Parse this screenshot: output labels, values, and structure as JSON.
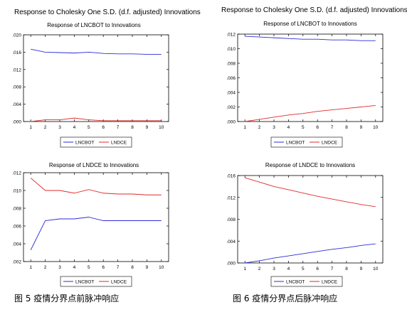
{
  "captions": {
    "left": "图 5   疫情分界点前脉冲响应",
    "right": "图 6   疫情分界点后脉冲响应"
  },
  "figures": {
    "left_title": "Response to Cholesky One S.D. (d.f. adjusted) Innovations",
    "right_title": "Response to Cholesky One S.D. (d.f. adjusted) Innovations"
  },
  "colors": {
    "LNCBOT": "#2b2bd9",
    "LNDCE": "#e02a2a"
  },
  "chart_data": [
    {
      "type": "line",
      "title": "Response of LNCBOT to Innovations",
      "x": [
        1,
        2,
        3,
        4,
        5,
        6,
        7,
        8,
        9,
        10
      ],
      "ylim": [
        0,
        0.02
      ],
      "yticks": [
        ".020",
        ".016",
        ".012",
        ".008",
        ".004",
        ".000"
      ],
      "grid": false,
      "legend": "bottom",
      "series": [
        {
          "name": "LNCBOT",
          "values": [
            0.0167,
            0.016,
            0.0159,
            0.0158,
            0.016,
            0.0157,
            0.0156,
            0.0156,
            0.0155,
            0.0155
          ]
        },
        {
          "name": "LNDCE",
          "values": [
            0.0,
            0.0004,
            0.0004,
            0.0008,
            0.0004,
            0.0002,
            0.0002,
            0.0002,
            0.0002,
            0.0002
          ]
        }
      ]
    },
    {
      "type": "line",
      "title": "Response of LNCBOT to Innovations",
      "x": [
        1,
        2,
        3,
        4,
        5,
        6,
        7,
        8,
        9,
        10
      ],
      "ylim": [
        0,
        0.012
      ],
      "yticks": [
        ".012",
        ".010",
        ".008",
        ".006",
        ".004",
        ".002",
        ".000"
      ],
      "grid": false,
      "legend": "bottom",
      "series": [
        {
          "name": "LNCBOT",
          "values": [
            0.0117,
            0.0116,
            0.0115,
            0.0114,
            0.0113,
            0.0113,
            0.0112,
            0.0112,
            0.0111,
            0.0111
          ]
        },
        {
          "name": "LNDCE",
          "values": [
            0.0,
            0.0003,
            0.0006,
            0.0009,
            0.0011,
            0.0014,
            0.0016,
            0.0018,
            0.002,
            0.0022
          ]
        }
      ]
    },
    {
      "type": "line",
      "title": "Response of LNDCE to Innovations",
      "x": [
        1,
        2,
        3,
        4,
        5,
        6,
        7,
        8,
        9,
        10
      ],
      "ylim": [
        0.002,
        0.012
      ],
      "yticks": [
        ".012",
        ".010",
        ".008",
        ".006",
        ".004",
        ".002"
      ],
      "grid": false,
      "legend": "bottom",
      "series": [
        {
          "name": "LNCBOT",
          "values": [
            0.0033,
            0.0066,
            0.0068,
            0.0068,
            0.007,
            0.0066,
            0.0066,
            0.0066,
            0.0066,
            0.0066
          ]
        },
        {
          "name": "LNDCE",
          "values": [
            0.0114,
            0.01,
            0.01,
            0.0097,
            0.0101,
            0.0097,
            0.0096,
            0.0096,
            0.0095,
            0.0095
          ]
        }
      ]
    },
    {
      "type": "line",
      "title": "Response of LNDCE to Innovations",
      "x": [
        1,
        2,
        3,
        4,
        5,
        6,
        7,
        8,
        9,
        10
      ],
      "ylim": [
        0,
        0.016
      ],
      "yticks": [
        ".016",
        ".012",
        ".008",
        ".004",
        ".000"
      ],
      "grid": false,
      "legend": "bottom",
      "series": [
        {
          "name": "LNCBOT",
          "values": [
            0.0,
            0.0004,
            0.0009,
            0.0013,
            0.0017,
            0.0021,
            0.0025,
            0.0028,
            0.0032,
            0.0035
          ]
        },
        {
          "name": "LNDCE",
          "values": [
            0.0156,
            0.0148,
            0.014,
            0.0134,
            0.0128,
            0.0122,
            0.0117,
            0.0112,
            0.0107,
            0.0103
          ]
        }
      ]
    }
  ]
}
